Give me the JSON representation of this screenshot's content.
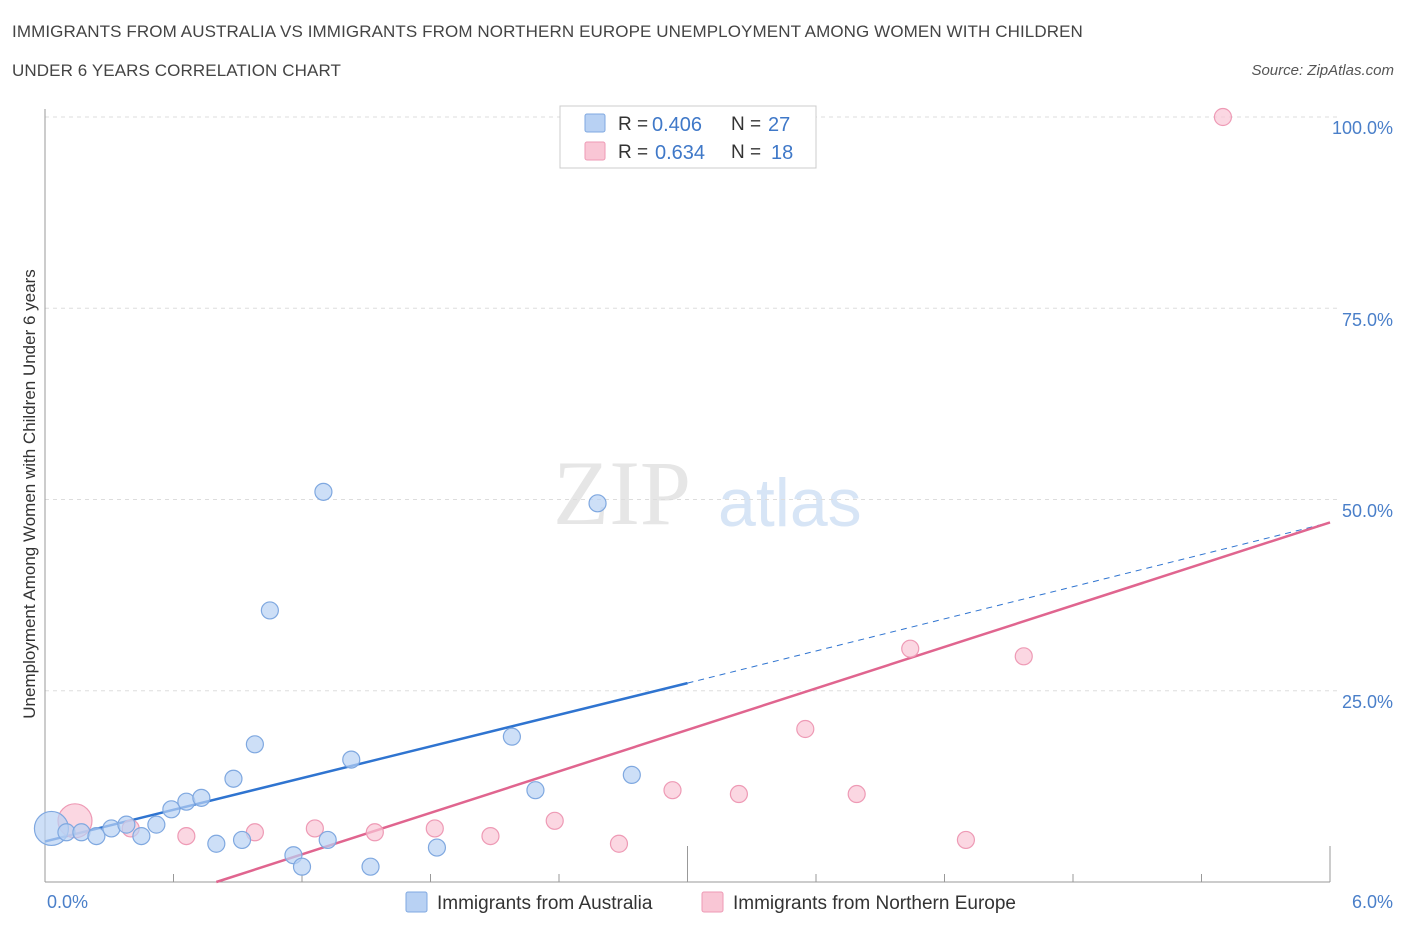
{
  "header": {
    "title_line1": "IMMIGRANTS FROM AUSTRALIA VS IMMIGRANTS FROM NORTHERN EUROPE UNEMPLOYMENT AMONG WOMEN WITH CHILDREN",
    "title_line2": "UNDER 6 YEARS CORRELATION CHART",
    "source": "Source: ZipAtlas.com"
  },
  "watermark": {
    "zip": "ZIP",
    "atlas": "atlas"
  },
  "colors": {
    "australia_fill": "#b8d1f3",
    "australia_stroke": "#7fa8e0",
    "australia_line": "#2f74d0",
    "europe_fill": "#f9c6d5",
    "europe_stroke": "#ee9ab5",
    "europe_line": "#e0658f",
    "tick_text": "#4a7fc9",
    "grid": "#dddddd"
  },
  "legend": {
    "r_label": "R =",
    "n_label": "N =",
    "australia": {
      "r": "0.406",
      "n": "27"
    },
    "europe": {
      "r": "0.634",
      "n": "18"
    }
  },
  "chart_data": {
    "type": "scatter",
    "title": "IMMIGRANTS FROM AUSTRALIA VS IMMIGRANTS FROM NORTHERN EUROPE UNEMPLOYMENT AMONG WOMEN WITH CHILDREN UNDER 6 YEARS CORRELATION CHART",
    "xlabel": "",
    "ylabel": "Unemployment Among Women with Children Under 6 years",
    "xlim": [
      0,
      6
    ],
    "ylim": [
      0,
      100
    ],
    "x_tick_labels": [
      "0.0%",
      "6.0%"
    ],
    "y_tick_labels": [
      "100.0%",
      "75.0%",
      "50.0%",
      "25.0%"
    ],
    "y_ticks": [
      100,
      75,
      50,
      25
    ],
    "grid": "horizontal dashed",
    "legend_position": "top-center",
    "series": [
      {
        "name": "Immigrants from Australia",
        "r": 0.406,
        "n": 27,
        "points": [
          {
            "x": 0.03,
            "y": 7.0,
            "big": true
          },
          {
            "x": 0.1,
            "y": 6.5
          },
          {
            "x": 0.17,
            "y": 6.5
          },
          {
            "x": 0.24,
            "y": 6.0
          },
          {
            "x": 0.31,
            "y": 7.0
          },
          {
            "x": 0.38,
            "y": 7.5
          },
          {
            "x": 0.45,
            "y": 6.0
          },
          {
            "x": 0.52,
            "y": 7.5
          },
          {
            "x": 0.59,
            "y": 9.5
          },
          {
            "x": 0.66,
            "y": 10.5
          },
          {
            "x": 0.73,
            "y": 11.0
          },
          {
            "x": 0.8,
            "y": 5.0
          },
          {
            "x": 0.88,
            "y": 13.5
          },
          {
            "x": 0.92,
            "y": 5.5
          },
          {
            "x": 0.98,
            "y": 18.0
          },
          {
            "x": 1.05,
            "y": 35.5
          },
          {
            "x": 1.16,
            "y": 3.5
          },
          {
            "x": 1.2,
            "y": 2.0
          },
          {
            "x": 1.3,
            "y": 51.0
          },
          {
            "x": 1.32,
            "y": 5.5
          },
          {
            "x": 1.43,
            "y": 16.0
          },
          {
            "x": 1.52,
            "y": 2.0
          },
          {
            "x": 1.83,
            "y": 4.5
          },
          {
            "x": 2.18,
            "y": 19.0
          },
          {
            "x": 2.29,
            "y": 12.0
          },
          {
            "x": 2.58,
            "y": 49.5
          },
          {
            "x": 2.74,
            "y": 14.0
          }
        ],
        "trend": {
          "x0": 0.0,
          "y0": 5.3,
          "x1_solid": 3.0,
          "y1_solid": 26.0,
          "x1_dashed": 6.0,
          "y1_dashed": 47.0
        }
      },
      {
        "name": "Immigrants from Northern Europe",
        "r": 0.634,
        "n": 18,
        "points": [
          {
            "x": 0.14,
            "y": 8.0,
            "big": true
          },
          {
            "x": 0.4,
            "y": 7.0
          },
          {
            "x": 0.66,
            "y": 6.0
          },
          {
            "x": 0.98,
            "y": 6.5
          },
          {
            "x": 1.26,
            "y": 7.0
          },
          {
            "x": 1.54,
            "y": 6.5
          },
          {
            "x": 1.82,
            "y": 7.0
          },
          {
            "x": 2.08,
            "y": 6.0
          },
          {
            "x": 2.38,
            "y": 8.0
          },
          {
            "x": 2.68,
            "y": 5.0
          },
          {
            "x": 2.93,
            "y": 12.0
          },
          {
            "x": 3.24,
            "y": 11.5
          },
          {
            "x": 3.55,
            "y": 20.0
          },
          {
            "x": 3.79,
            "y": 11.5
          },
          {
            "x": 4.04,
            "y": 30.5
          },
          {
            "x": 4.3,
            "y": 5.5
          },
          {
            "x": 4.57,
            "y": 29.5
          },
          {
            "x": 5.5,
            "y": 100.0
          }
        ],
        "trend": {
          "x0": 0.8,
          "y0": 0.0,
          "x1": 6.0,
          "y1": 47.0
        }
      }
    ]
  }
}
